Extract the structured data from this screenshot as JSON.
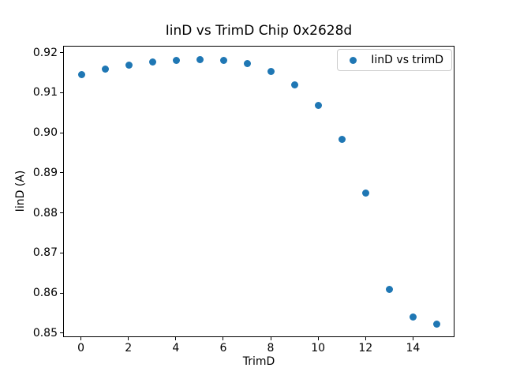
{
  "figure": {
    "title": "IinD vs TrimD Chip 0x2628d",
    "xlabel": "TrimD",
    "ylabel": "IinD (A)",
    "legend_label": "IinD vs trimD"
  },
  "chart_data": {
    "type": "scatter",
    "title": "IinD vs TrimD Chip 0x2628d",
    "xlabel": "TrimD",
    "ylabel": "IinD (A)",
    "legend": [
      "IinD vs trimD"
    ],
    "legend_position": "upper right",
    "grid": false,
    "marker_color": "#1f77b4",
    "x": [
      0,
      1,
      2,
      3,
      4,
      5,
      6,
      7,
      8,
      9,
      10,
      11,
      12,
      13,
      14,
      15
    ],
    "y": [
      0.9147,
      0.916,
      0.917,
      0.9177,
      0.9182,
      0.9184,
      0.9181,
      0.9173,
      0.9154,
      0.912,
      0.9069,
      0.8984,
      0.885,
      0.8611,
      0.8541,
      0.8524
    ],
    "xlim": [
      -0.75,
      15.75
    ],
    "ylim": [
      0.849,
      0.9217
    ],
    "xticks": [
      0,
      2,
      4,
      6,
      8,
      10,
      12,
      14
    ],
    "yticks": [
      0.85,
      0.86,
      0.87,
      0.88,
      0.89,
      0.9,
      0.91,
      0.92
    ],
    "ytick_decimals": 2
  }
}
